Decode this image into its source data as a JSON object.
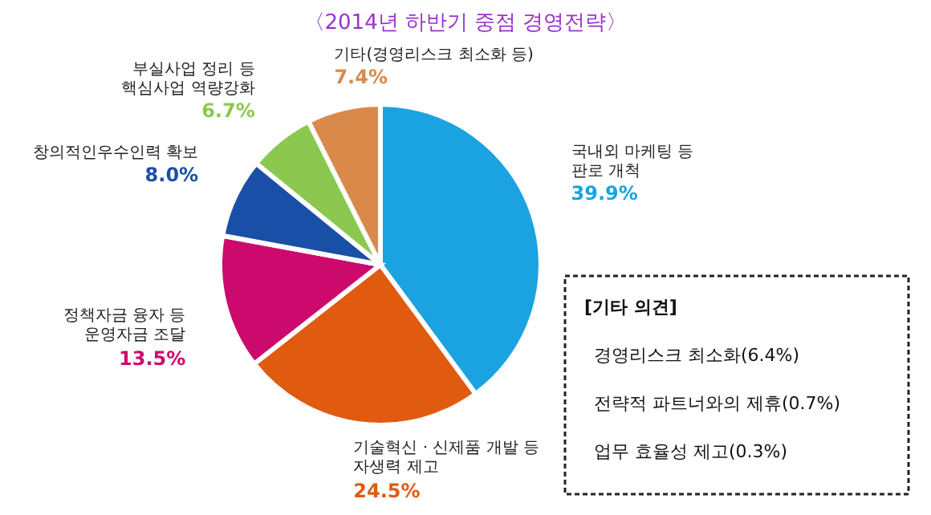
{
  "chart_data": {
    "type": "pie",
    "title": "〈2014년 하반기 중점 경영전략〉",
    "categories": [
      "국내외 마케팅 등\n판로 개척",
      "기술혁신 · 신제품 개발 등\n자생력 제고",
      "정책자금 융자 등\n운영자금 조달",
      "창의적인우수인력 확보",
      "부실사업 정리 등\n핵심사업 역량강화",
      "기타(경영리스크 최소화 등)"
    ],
    "values": [
      39.9,
      24.5,
      13.5,
      8.0,
      6.7,
      7.4
    ],
    "value_labels": [
      "39.9%",
      "24.5%",
      "13.5%",
      "8.0%",
      "6.7%",
      "7.4%"
    ],
    "colors": [
      "#1aa3e0",
      "#e05a10",
      "#cc0a6e",
      "#1a4fa8",
      "#8cc850",
      "#d98a4a"
    ],
    "annotations": [
      "[기타 의견]",
      "경영리스크 최소화(6.4%)",
      "전략적 파트너와의 제휴(0.7%)",
      "업무 효율성 제고(0.3%)"
    ]
  }
}
